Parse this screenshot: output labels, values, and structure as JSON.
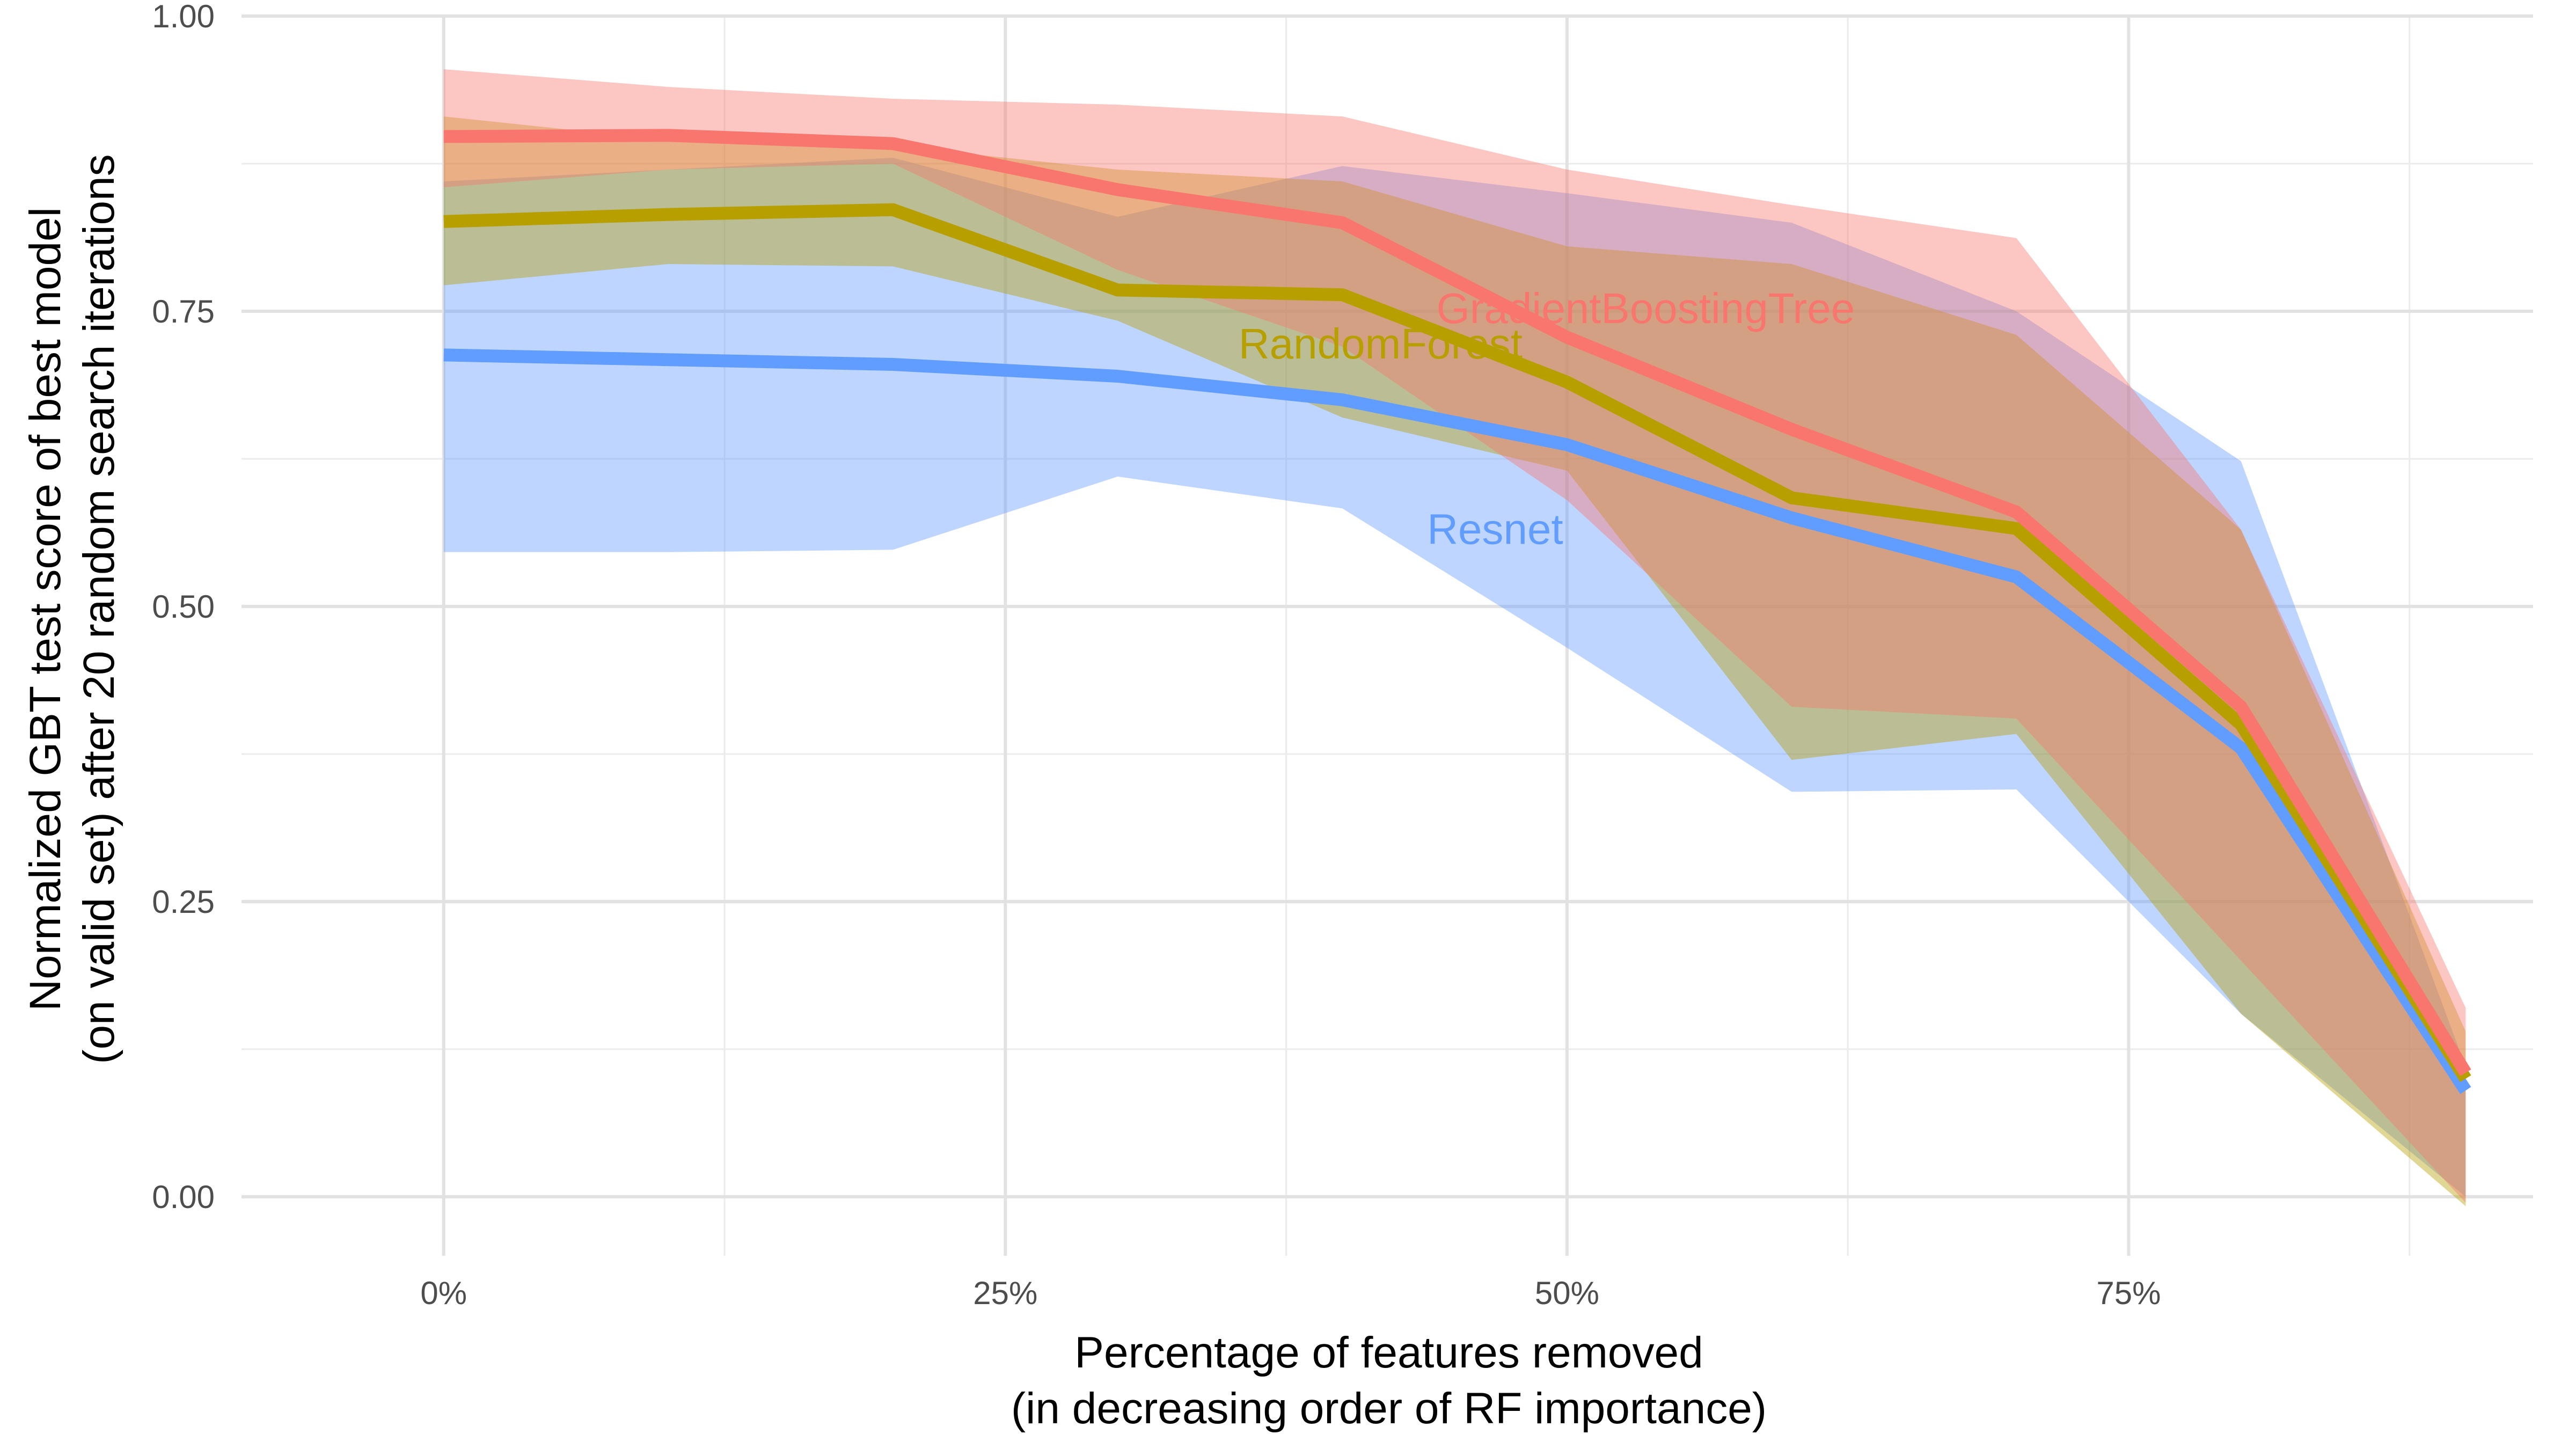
{
  "chart_data": {
    "type": "line",
    "title": "",
    "xlabel_line1": "Percentage of features removed",
    "xlabel_line2": "(in decreasing order of RF importance)",
    "ylabel_line1": "Normalized GBT test score of best model",
    "ylabel_line2": "(on valid set) after 20 random search iterations",
    "xlim": [
      -0.09,
      0.93
    ],
    "ylim": [
      -0.05,
      1.0
    ],
    "x_ticks": [
      0,
      0.25,
      0.5,
      0.75
    ],
    "x_tick_labels": [
      "0%",
      "25%",
      "50%",
      "75%"
    ],
    "x_minor_ticks": [
      0.125,
      0.375,
      0.625,
      0.875
    ],
    "y_ticks": [
      0,
      0.25,
      0.5,
      0.75,
      1.0
    ],
    "y_tick_labels": [
      "0.00",
      "0.25",
      "0.50",
      "0.75",
      "1.00"
    ],
    "y_minor_ticks": [
      0.125,
      0.375,
      0.625,
      0.875
    ],
    "grid": true,
    "legend": "none (direct labels on lines)",
    "x": [
      0,
      0.1,
      0.2,
      0.3,
      0.4,
      0.5,
      0.6,
      0.7,
      0.8,
      0.9
    ],
    "series": [
      {
        "name": "Resnet",
        "color": "#619CFF",
        "values": [
          0.713,
          0.709,
          0.705,
          0.695,
          0.675,
          0.637,
          0.575,
          0.525,
          0.38,
          0.09
        ],
        "lower": [
          0.546,
          0.546,
          0.548,
          0.61,
          0.583,
          0.465,
          0.343,
          0.345,
          0.155,
          0.0
        ],
        "upper": [
          0.86,
          0.87,
          0.88,
          0.83,
          0.873,
          0.85,
          0.825,
          0.75,
          0.623,
          0.11
        ],
        "label_x": 0.468,
        "label_y": 0.553
      },
      {
        "name": "RandomForest",
        "color": "#B79F00",
        "values": [
          0.826,
          0.832,
          0.836,
          0.768,
          0.764,
          0.69,
          0.592,
          0.566,
          0.4,
          0.1
        ],
        "lower": [
          0.772,
          0.79,
          0.788,
          0.742,
          0.66,
          0.615,
          0.37,
          0.392,
          0.155,
          -0.008
        ],
        "upper": [
          0.915,
          0.895,
          0.89,
          0.87,
          0.86,
          0.805,
          0.79,
          0.73,
          0.565,
          0.14
        ],
        "label_x": 0.417,
        "label_y": 0.71
      },
      {
        "name": "GradientBoostingTree",
        "color": "#F8766D",
        "values": [
          0.898,
          0.899,
          0.892,
          0.853,
          0.825,
          0.728,
          0.65,
          0.58,
          0.415,
          0.105
        ],
        "lower": [
          0.855,
          0.87,
          0.875,
          0.785,
          0.72,
          0.59,
          0.415,
          0.405,
          0.2,
          -0.005
        ],
        "upper": [
          0.955,
          0.94,
          0.93,
          0.925,
          0.915,
          0.87,
          0.84,
          0.812,
          0.565,
          0.16
        ],
        "label_x": 0.535,
        "label_y": 0.74
      }
    ]
  }
}
